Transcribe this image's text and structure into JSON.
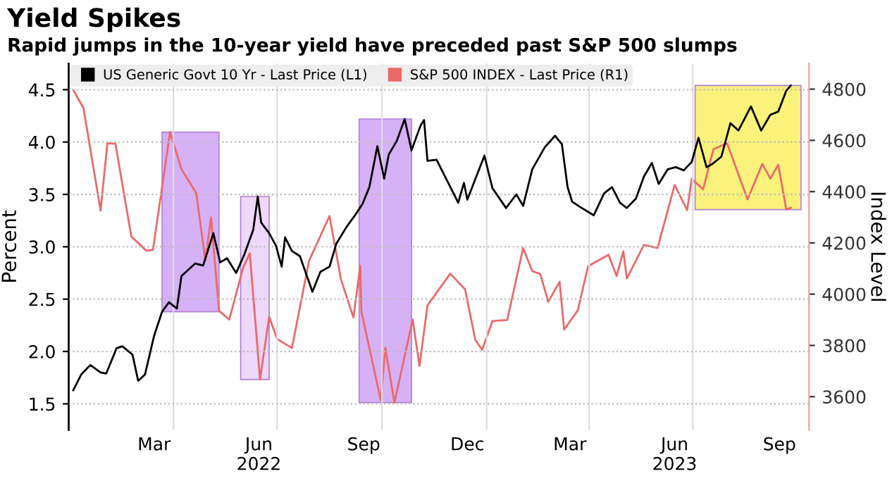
{
  "chart_data": {
    "type": "line",
    "title": "Yield Spikes",
    "subtitle": "Rapid jumps in the 10-year yield have preceded past S&P 500 slumps",
    "ylabel": "Percent",
    "y2label": "Index Level",
    "xlim": [
      "2021-12-30",
      "2023-10-11"
    ],
    "ylim": [
      1.25,
      4.75
    ],
    "yticks": [
      1.5,
      {
        "value": 2,
        "label": "2.0"
      },
      2.5,
      {
        "value": 3,
        "label": "3.0"
      },
      3.5,
      {
        "value": 4,
        "label": "4.0"
      },
      4.5
    ],
    "y2lim": [
      3470,
      4900
    ],
    "y2ticks": [
      3600,
      3800,
      4000,
      4200,
      4400,
      4600,
      4800
    ],
    "xticks": [
      {
        "value": "2022-03-15",
        "label": "Mar"
      },
      {
        "value": "2022-06-15",
        "label": "Jun\n2022"
      },
      {
        "value": "2022-09-15",
        "label": "Sep"
      },
      {
        "value": "2022-12-15",
        "label": "Dec"
      },
      {
        "value": "2023-03-15",
        "label": "Mar"
      },
      {
        "value": "2023-06-15",
        "label": "Jun\n2023"
      },
      {
        "value": "2023-09-15",
        "label": "Sep"
      },
      {
        "value": "2022-04-01",
        "label": null
      },
      {
        "value": "2022-07-01",
        "label": null
      },
      {
        "value": "2022-10-01",
        "label": null
      },
      {
        "value": "2023-01-01",
        "label": null
      },
      {
        "value": "2023-04-01",
        "label": null
      },
      {
        "value": "2023-07-01",
        "label": null
      }
    ],
    "grid": true,
    "legend": "top left",
    "bands": [
      {
        "axis": "x",
        "from": "2022-03-22",
        "to": "2022-05-11",
        "label": null,
        "color": "#d7b1f6"
      },
      {
        "axis": "x",
        "from": "2022-05-30",
        "to": "2022-06-24",
        "label": null,
        "color": "#eed8fb"
      },
      {
        "axis": "x",
        "from": "2022-09-11",
        "to": "2022-10-27",
        "label": null,
        "color": "#d7b1f6"
      },
      {
        "axis": "x",
        "from": "2023-07-03",
        "to": "2023-10-04",
        "label": null,
        "color": "#faf27a"
      }
    ],
    "series": [
      {
        "name": "US Generic Govt 10 Yr - Last Price (L1)",
        "color": "#000000",
        "axis": "y",
        "x": [
          "2022-01-03",
          "2022-01-10",
          "2022-01-18",
          "2022-01-27",
          "2022-02-01",
          "2022-02-10",
          "2022-02-15",
          "2022-02-24",
          "2022-03-01",
          "2022-03-07",
          "2022-03-15",
          "2022-03-22",
          "2022-03-28",
          "2022-04-04",
          "2022-04-08",
          "2022-04-20",
          "2022-04-27",
          "2022-05-06",
          "2022-05-12",
          "2022-05-18",
          "2022-05-26",
          "2022-06-02",
          "2022-06-10",
          "2022-06-14",
          "2022-06-17",
          "2022-06-24",
          "2022-06-30",
          "2022-07-05",
          "2022-07-08",
          "2022-07-14",
          "2022-07-21",
          "2022-08-01",
          "2022-08-08",
          "2022-08-16",
          "2022-08-22",
          "2022-08-31",
          "2022-09-08",
          "2022-09-14",
          "2022-09-20",
          "2022-09-27",
          "2022-10-03",
          "2022-10-07",
          "2022-10-14",
          "2022-10-21",
          "2022-10-27",
          "2022-11-04",
          "2022-11-07",
          "2022-11-10",
          "2022-11-18",
          "2022-11-25",
          "2022-12-07",
          "2022-12-12",
          "2022-12-15",
          "2022-12-30",
          "2023-01-06",
          "2023-01-18",
          "2023-01-27",
          "2023-02-02",
          "2023-02-10",
          "2023-02-21",
          "2023-03-02",
          "2023-03-08",
          "2023-03-13",
          "2023-03-17",
          "2023-03-24",
          "2023-04-05",
          "2023-04-14",
          "2023-04-21",
          "2023-04-28",
          "2023-05-04",
          "2023-05-12",
          "2023-05-19",
          "2023-05-26",
          "2023-06-01",
          "2023-06-09",
          "2023-06-16",
          "2023-06-23",
          "2023-06-30",
          "2023-07-06",
          "2023-07-13",
          "2023-07-18",
          "2023-07-26",
          "2023-08-03",
          "2023-08-10",
          "2023-08-21",
          "2023-08-30",
          "2023-09-07",
          "2023-09-14",
          "2023-09-21",
          "2023-09-25"
        ],
        "values": [
          1.63,
          1.78,
          1.87,
          1.8,
          1.79,
          2.03,
          2.05,
          1.97,
          1.72,
          1.78,
          2.15,
          2.38,
          2.47,
          2.41,
          2.72,
          2.84,
          2.82,
          3.13,
          2.85,
          2.89,
          2.75,
          2.92,
          3.16,
          3.48,
          3.23,
          3.13,
          3.01,
          2.81,
          3.09,
          2.96,
          2.91,
          2.57,
          2.76,
          2.81,
          3.03,
          3.19,
          3.31,
          3.41,
          3.57,
          3.96,
          3.65,
          3.88,
          4.01,
          4.22,
          3.92,
          4.16,
          4.21,
          3.82,
          3.83,
          3.68,
          3.42,
          3.61,
          3.45,
          3.87,
          3.56,
          3.37,
          3.5,
          3.39,
          3.74,
          3.95,
          4.06,
          3.98,
          3.57,
          3.43,
          3.38,
          3.3,
          3.51,
          3.57,
          3.42,
          3.37,
          3.46,
          3.67,
          3.8,
          3.6,
          3.74,
          3.76,
          3.73,
          3.81,
          4.04,
          3.76,
          3.79,
          3.86,
          4.18,
          4.11,
          4.34,
          4.11,
          4.26,
          4.29,
          4.49,
          4.54
        ]
      },
      {
        "name": "S&P 500 INDEX - Last Price (R1)",
        "color": "#ea6a6a",
        "axis": "y2",
        "x": [
          "2022-01-03",
          "2022-01-12",
          "2022-01-27",
          "2022-02-02",
          "2022-02-09",
          "2022-02-23",
          "2022-03-08",
          "2022-03-14",
          "2022-03-29",
          "2022-04-08",
          "2022-04-21",
          "2022-04-29",
          "2022-05-04",
          "2022-05-11",
          "2022-05-20",
          "2022-06-01",
          "2022-06-07",
          "2022-06-16",
          "2022-06-24",
          "2022-07-01",
          "2022-07-14",
          "2022-07-29",
          "2022-08-16",
          "2022-08-26",
          "2022-09-06",
          "2022-09-12",
          "2022-09-13",
          "2022-09-30",
          "2022-10-04",
          "2022-10-12",
          "2022-10-17",
          "2022-10-28",
          "2022-11-03",
          "2022-11-10",
          "2022-11-30",
          "2022-12-13",
          "2022-12-22",
          "2022-12-28",
          "2023-01-06",
          "2023-01-19",
          "2023-02-02",
          "2023-02-10",
          "2023-02-17",
          "2023-02-24",
          "2023-03-06",
          "2023-03-10",
          "2023-03-22",
          "2023-03-31",
          "2023-04-18",
          "2023-04-25",
          "2023-05-01",
          "2023-05-04",
          "2023-05-19",
          "2023-05-31",
          "2023-06-15",
          "2023-06-26",
          "2023-06-30",
          "2023-07-10",
          "2023-07-19",
          "2023-07-31",
          "2023-08-18",
          "2023-08-31",
          "2023-09-07",
          "2023-09-14",
          "2023-09-21",
          "2023-09-25"
        ],
        "values": [
          4797,
          4726,
          4326,
          4589,
          4587,
          4225,
          4170,
          4173,
          4632,
          4488,
          4394,
          4132,
          4300,
          3935,
          3901,
          4101,
          4160,
          3667,
          3912,
          3825,
          3790,
          4130,
          4305,
          4058,
          3909,
          4110,
          3932,
          3586,
          3791,
          3577,
          3678,
          3901,
          3720,
          3956,
          4080,
          4019,
          3822,
          3783,
          3895,
          3899,
          4180,
          4090,
          4079,
          3970,
          4048,
          3862,
          3937,
          4109,
          4154,
          4071,
          4167,
          4061,
          4192,
          4180,
          4426,
          4328,
          4450,
          4409,
          4565,
          4589,
          4370,
          4508,
          4451,
          4505,
          4330,
          4337
        ]
      }
    ]
  }
}
